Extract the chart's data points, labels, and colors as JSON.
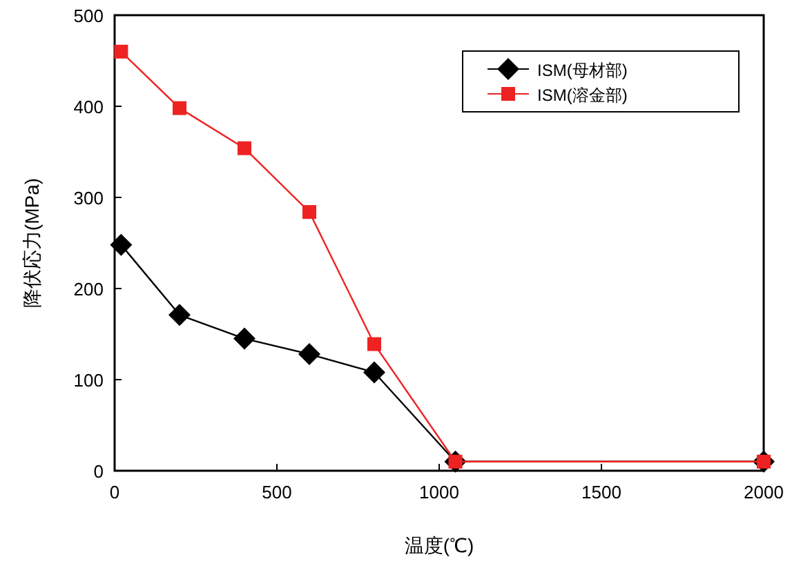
{
  "chart_data": {
    "type": "line",
    "xlabel": "温度(℃)",
    "ylabel": "降伏応力(MPa)",
    "xlim": [
      0,
      2000
    ],
    "xticks": [
      0,
      500,
      1000,
      1500,
      2000
    ],
    "ylim": [
      0,
      500
    ],
    "yticks": [
      0,
      100,
      200,
      300,
      400,
      500
    ],
    "grid": false,
    "legend": "top right",
    "series": [
      {
        "name": "ISM(母材部)",
        "color": "#000000",
        "marker": "diamond",
        "x": [
          20,
          200,
          400,
          600,
          800,
          1050,
          2000
        ],
        "values": [
          248,
          171,
          145,
          128,
          108,
          10,
          10
        ]
      },
      {
        "name": "ISM(溶金部)",
        "color": "#ee2222",
        "marker": "square",
        "x": [
          20,
          200,
          400,
          600,
          800,
          1050,
          2000
        ],
        "values": [
          460,
          398,
          354,
          284,
          139,
          10,
          10
        ]
      }
    ]
  }
}
